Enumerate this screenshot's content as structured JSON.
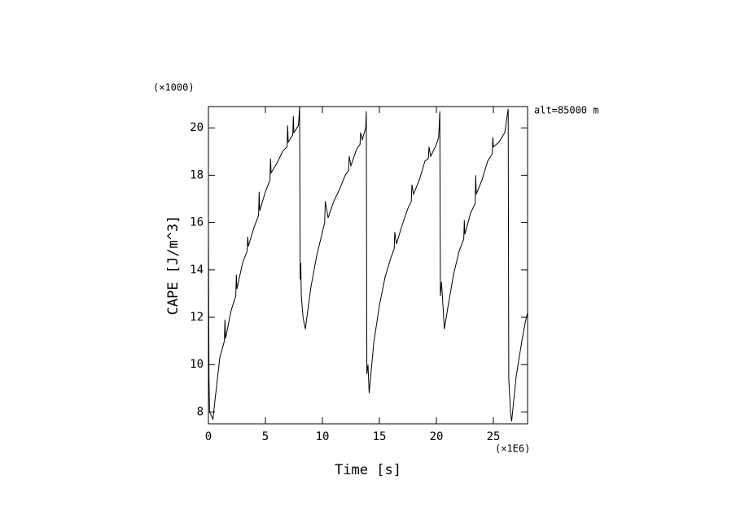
{
  "chart_data": {
    "type": "line",
    "ylabel": "CAPE [J/m^3]",
    "xlabel": "Time [s]",
    "x_multiplier": "(×1E6)",
    "y_multiplier": "(×1000)",
    "annotation": "alt=85000 m",
    "xlim": [
      0,
      28
    ],
    "ylim": [
      7.5,
      20.9
    ],
    "xticks": [
      0,
      5,
      10,
      15,
      20,
      25
    ],
    "yticks": [
      8,
      10,
      12,
      14,
      16,
      18,
      20
    ],
    "series": [
      {
        "color": "#000000",
        "x": [
          0,
          0.05,
          0.1,
          0.4,
          0.6,
          1.0,
          1.4,
          1.45,
          1.5,
          2.0,
          2.4,
          2.45,
          2.5,
          3.0,
          3.4,
          3.45,
          3.5,
          4.0,
          4.4,
          4.45,
          4.5,
          5.0,
          5.4,
          5.45,
          5.5,
          6.0,
          6.5,
          6.9,
          6.95,
          7.0,
          7.4,
          7.45,
          7.5,
          7.9,
          8.0,
          8.05,
          8.1,
          8.15,
          8.3,
          8.5,
          9.0,
          9.5,
          10.0,
          10.2,
          10.25,
          10.5,
          11.0,
          11.5,
          12.0,
          12.3,
          12.35,
          12.5,
          13.0,
          13.3,
          13.35,
          13.5,
          13.8,
          13.85,
          13.9,
          14.0,
          14.1,
          14.5,
          15.0,
          15.5,
          16.0,
          16.3,
          16.35,
          16.5,
          17.0,
          17.5,
          17.8,
          17.85,
          18.0,
          18.5,
          19.0,
          19.3,
          19.35,
          19.5,
          20.0,
          20.2,
          20.3,
          20.35,
          20.45,
          20.7,
          21.0,
          21.5,
          22.0,
          22.4,
          22.45,
          22.5,
          23.0,
          23.4,
          23.45,
          23.5,
          24.0,
          24.5,
          24.9,
          24.95,
          25.0,
          25.5,
          26.0,
          26.3,
          26.35,
          26.5,
          26.6,
          27.0,
          27.5,
          27.8,
          28.0
        ],
        "values": [
          15.8,
          9.5,
          8.0,
          7.7,
          8.6,
          10.3,
          11.0,
          11.9,
          11.1,
          12.3,
          12.9,
          13.8,
          13.2,
          14.3,
          14.8,
          15.4,
          15.0,
          15.8,
          16.3,
          17.3,
          16.5,
          17.3,
          17.8,
          18.7,
          18.1,
          18.5,
          19.0,
          19.2,
          20.1,
          19.4,
          19.7,
          20.5,
          19.8,
          20.1,
          20.9,
          13.6,
          14.3,
          12.9,
          12.0,
          11.5,
          13.3,
          14.6,
          15.6,
          16.0,
          16.9,
          16.2,
          16.9,
          17.4,
          18.0,
          18.2,
          18.8,
          18.4,
          19.1,
          19.3,
          19.8,
          19.5,
          20.0,
          20.7,
          9.6,
          10.0,
          8.8,
          10.9,
          12.5,
          13.7,
          14.5,
          14.9,
          15.6,
          15.1,
          15.9,
          16.6,
          16.9,
          17.6,
          17.2,
          17.8,
          18.6,
          18.7,
          19.2,
          18.8,
          19.3,
          19.6,
          20.7,
          12.9,
          13.5,
          11.5,
          12.4,
          13.8,
          14.8,
          15.3,
          16.1,
          15.5,
          16.4,
          16.8,
          18.0,
          17.2,
          17.8,
          18.6,
          18.9,
          19.6,
          19.2,
          19.4,
          19.8,
          20.8,
          9.4,
          8.0,
          7.6,
          9.5,
          11.0,
          11.8,
          12.2
        ]
      }
    ]
  }
}
